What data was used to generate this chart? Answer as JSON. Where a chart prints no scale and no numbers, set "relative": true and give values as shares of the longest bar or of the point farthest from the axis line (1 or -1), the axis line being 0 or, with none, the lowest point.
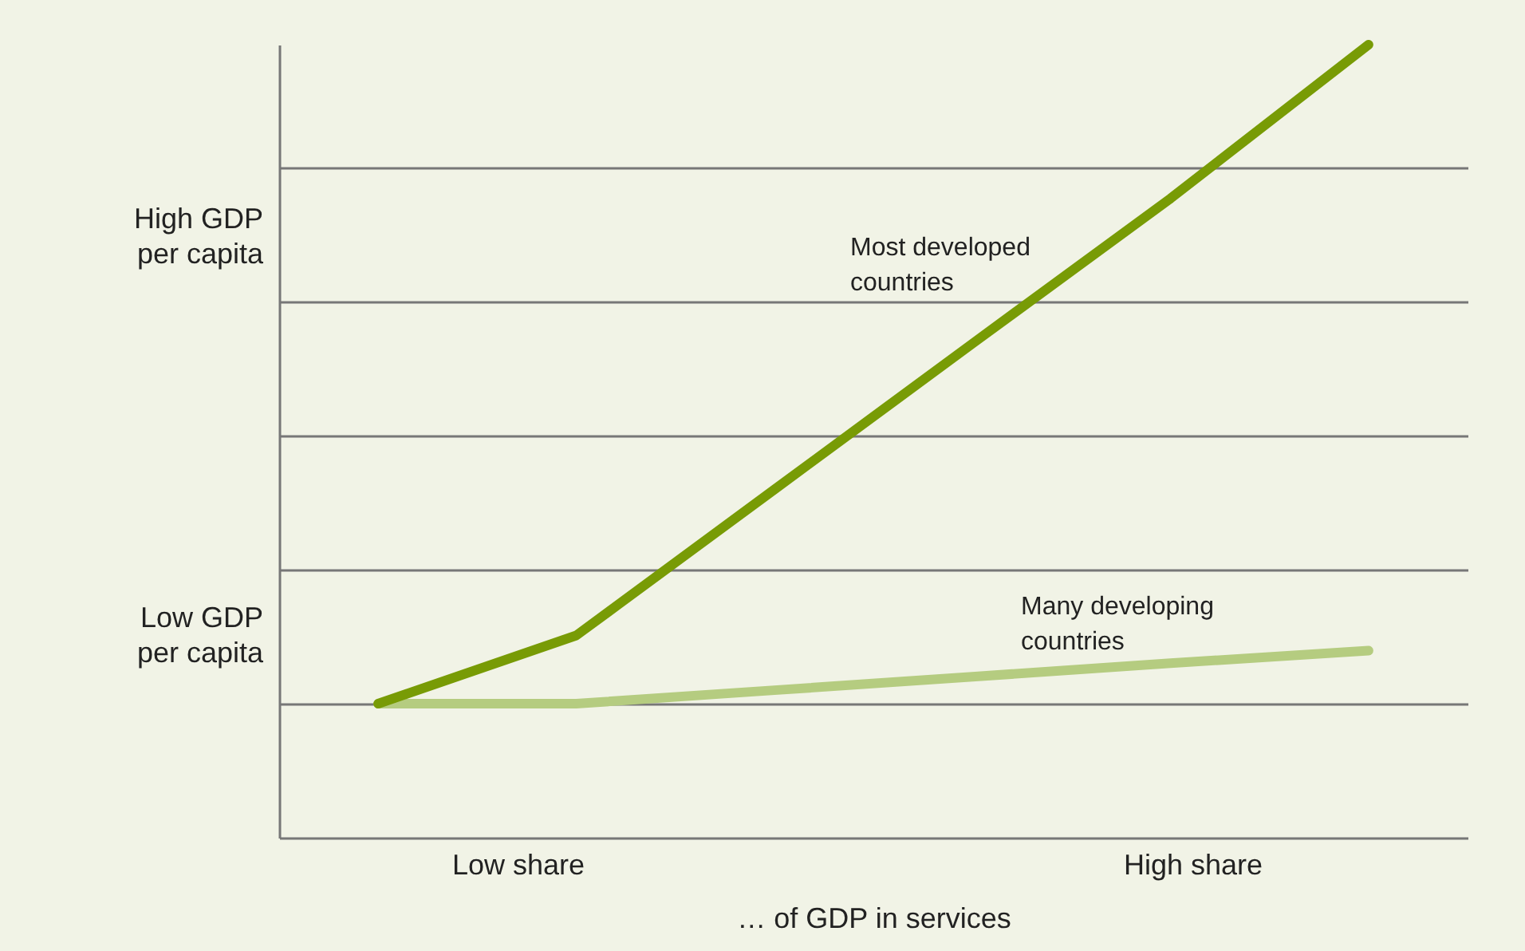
{
  "chart_data": {
    "type": "line",
    "relative": true,
    "xlabel": "… of GDP in services",
    "categories": [
      null,
      null,
      null,
      null,
      null,
      null
    ],
    "series": [
      {
        "color": "#b5cc80",
        "values": [
          0.169,
          0.169,
          0.186,
          0.203,
          0.22,
          0.236
        ]
      },
      {
        "color": "#789b05",
        "values": [
          0.169,
          0.255,
          0.439,
          0.623,
          0.806,
          1
        ]
      }
    ],
    "grid": "y",
    "annotations": [
      "Most developed\ncountries",
      "Many developing\ncountries",
      "High GDP\nper capita",
      "Low GDP\nper capita",
      "Low share",
      "High share"
    ]
  }
}
